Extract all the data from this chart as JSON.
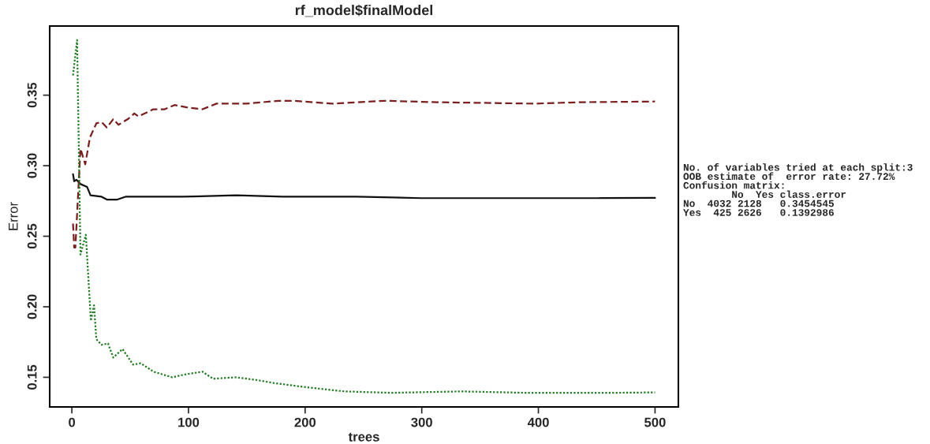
{
  "chart_data": {
    "type": "line",
    "title": "rf_model$finalModel",
    "xlabel": "trees",
    "ylabel": "Error",
    "xlim": [
      -19,
      520
    ],
    "ylim": [
      0.129,
      0.399
    ],
    "xticks": [
      0,
      100,
      200,
      300,
      400,
      500
    ],
    "yticks": [
      0.15,
      {
        "value": 0.2,
        "label": "0.20"
      },
      0.25,
      {
        "value": 0.3,
        "label": "0.30"
      },
      0.35
    ],
    "grid": false,
    "legend": false,
    "series": [
      {
        "color": "#111111",
        "line_style": "solid",
        "x": [
          1,
          2,
          4,
          7.4,
          13,
          16,
          25.5,
          30,
          39,
          46,
          70,
          95,
          141,
          181,
          244,
          300,
          350,
          400,
          450,
          500
        ],
        "values": [
          0.294,
          0.289,
          0.29,
          0.287,
          0.285,
          0.279,
          0.278,
          0.276,
          0.276,
          0.278,
          0.278,
          0.278,
          0.279,
          0.278,
          0.278,
          0.277,
          0.277,
          0.277,
          0.277,
          0.2772
        ]
      },
      {
        "color": "#7a1e1e",
        "line_style": "dashed",
        "x": [
          1,
          2,
          3,
          7.4,
          11.5,
          15.5,
          21,
          25.5,
          30,
          35.5,
          40,
          48,
          53.5,
          57,
          70,
          79.5,
          88,
          101,
          112,
          124,
          150,
          177,
          191,
          223,
          268,
          313,
          396,
          437,
          500
        ],
        "values": [
          0.259,
          0.242,
          0.242,
          0.312,
          0.301,
          0.32,
          0.33,
          0.331,
          0.327,
          0.333,
          0.329,
          0.333,
          0.337,
          0.335,
          0.34,
          0.34,
          0.343,
          0.341,
          0.34,
          0.344,
          0.344,
          0.346,
          0.346,
          0.344,
          0.346,
          0.345,
          0.344,
          0.345,
          0.3455
        ]
      },
      {
        "color": "#1e7a1e",
        "line_style": "dotted",
        "x": [
          1,
          4.5,
          7.4,
          12,
          16.3,
          19,
          21,
          25.5,
          31,
          35.5,
          43.5,
          52.5,
          59,
          70,
          86,
          97,
          112,
          121,
          141,
          159,
          173,
          191,
          211.5,
          234,
          274,
          334,
          390,
          464,
          500
        ],
        "values": [
          0.364,
          0.389,
          0.237,
          0.251,
          0.19,
          0.201,
          0.177,
          0.173,
          0.174,
          0.164,
          0.17,
          0.159,
          0.16,
          0.154,
          0.15,
          0.152,
          0.154,
          0.149,
          0.15,
          0.148,
          0.146,
          0.144,
          0.142,
          0.14,
          0.139,
          0.14,
          0.139,
          0.139,
          0.1393
        ]
      }
    ],
    "annotations": [
      "No. of variables tried at each split:3",
      "OOB estimate of  error rate: 27.72%",
      "Confusion matrix:",
      "        No  Yes class.error",
      "No  4032 2128   0.3454545",
      "Yes  425 2626   0.1392986"
    ]
  }
}
